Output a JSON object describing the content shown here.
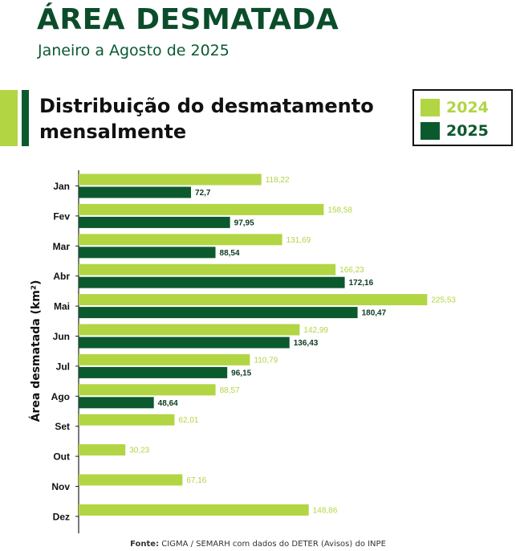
{
  "header": {
    "title": "ÁREA DESMATADA",
    "subtitle": "Janeiro a Agosto de 2025",
    "section_title_line1": "Distribuição do desmatamento",
    "section_title_line2": "mensalmente"
  },
  "colors": {
    "light_green": "#b2d544",
    "dark_green": "#0b5a2e",
    "title_green": "#0b4d2a",
    "axis": "#222222"
  },
  "footer": {
    "source_label": "Fonte:",
    "source_text": " CIGMA / SEMARH com dados do DETER (Avisos) do INPE"
  },
  "chart_data": {
    "type": "bar",
    "orientation": "horizontal",
    "ylabel": "Área desmatada (km²)",
    "categories": [
      "Jan",
      "Fev",
      "Mar",
      "Abr",
      "Mai",
      "Jun",
      "Jul",
      "Ago",
      "Set",
      "Out",
      "Nov",
      "Dez"
    ],
    "legend_position": "top-right",
    "grid": false,
    "series": [
      {
        "name": "2024",
        "color": "#b2d544",
        "values": [
          118.22,
          158.58,
          131.69,
          166.23,
          225.53,
          142.99,
          110.79,
          88.57,
          62.01,
          30.23,
          67.16,
          148.86
        ],
        "labels": [
          "118,22",
          "158,58",
          "131,69",
          "166,23",
          "225,53",
          "142,99",
          "110,79",
          "88,57",
          "62,01",
          "30,23",
          "67,16",
          "148,86"
        ]
      },
      {
        "name": "2025",
        "color": "#0b5a2e",
        "values": [
          72.7,
          97.95,
          88.54,
          172.16,
          180.47,
          136.43,
          96.15,
          48.64,
          null,
          null,
          null,
          null
        ],
        "labels": [
          "72,7",
          "97,95",
          "88,54",
          "172,16",
          "180,47",
          "136,43",
          "96,15",
          "48,64",
          null,
          null,
          null,
          null
        ]
      }
    ]
  }
}
